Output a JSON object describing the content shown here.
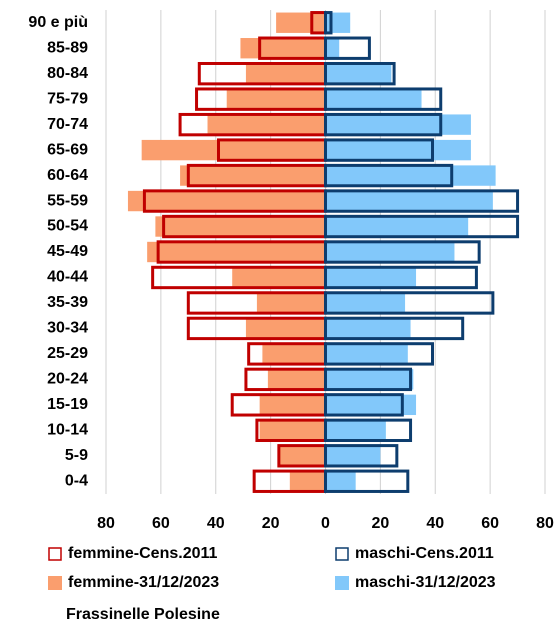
{
  "chart_data": {
    "type": "pyramid",
    "title": "Frassinelle Polesine",
    "categories": [
      "90 e più",
      "85-89",
      "80-84",
      "75-79",
      "70-74",
      "65-69",
      "60-64",
      "55-59",
      "50-54",
      "45-49",
      "40-44",
      "35-39",
      "30-34",
      "25-29",
      "20-24",
      "15-19",
      "10-14",
      "5-9",
      "0-4"
    ],
    "series": [
      {
        "name": "femmine-Cens.2011",
        "color": "#c00000",
        "style": "outline",
        "values": [
          -5,
          -24,
          -46,
          -47,
          -53,
          -39,
          -50,
          -66,
          -59,
          -61,
          -63,
          -50,
          -50,
          -28,
          -29,
          -34,
          -25,
          -17,
          -26
        ]
      },
      {
        "name": "maschi-Cens.2011",
        "color": "#0d3d6e",
        "style": "outline",
        "values": [
          2,
          16,
          25,
          42,
          42,
          39,
          46,
          70,
          70,
          56,
          55,
          61,
          50,
          39,
          31,
          28,
          31,
          26,
          30
        ]
      },
      {
        "name": "femmine-31/12/2023",
        "color": "#fa9e6e",
        "style": "fill",
        "values": [
          -18,
          -31,
          -29,
          -36,
          -43,
          -67,
          -53,
          -72,
          -62,
          -65,
          -34,
          -25,
          -29,
          -23,
          -21,
          -24,
          -24,
          -17,
          -13
        ]
      },
      {
        "name": "maschi-31/12/2023",
        "color": "#82c8fa",
        "style": "fill",
        "values": [
          9,
          5,
          24,
          35,
          53,
          53,
          62,
          61,
          52,
          47,
          33,
          29,
          31,
          30,
          32,
          33,
          22,
          20,
          11
        ]
      }
    ],
    "xlim": [
      -80,
      80
    ],
    "xticks": [
      {
        "value": -80,
        "label": "80"
      },
      {
        "value": -60,
        "label": "60"
      },
      {
        "value": -40,
        "label": "40"
      },
      {
        "value": -20,
        "label": "20"
      },
      0,
      20,
      40,
      60,
      80
    ],
    "grid": true
  }
}
